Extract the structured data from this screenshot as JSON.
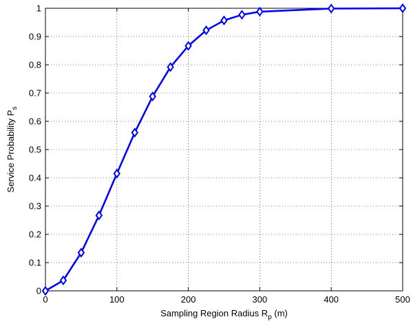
{
  "chart_data": {
    "type": "line",
    "title": "",
    "xlabel": {
      "main": "Sampling Region Radius R",
      "sub": "p",
      "suffix": " (m)"
    },
    "ylabel": {
      "main": "Service Probability P",
      "sub": "s"
    },
    "xlim": [
      0,
      500
    ],
    "ylim": [
      0,
      1
    ],
    "xticks": [
      0,
      100,
      200,
      300,
      400,
      500
    ],
    "yticks": [
      0,
      0.1,
      0.2,
      0.3,
      0.4,
      0.5,
      0.6,
      0.7,
      0.8,
      0.9,
      1
    ],
    "grid": true,
    "marker": "diamond",
    "series": [
      {
        "color": "#0000ff",
        "x": [
          0,
          25,
          50,
          75,
          100,
          125,
          150,
          175,
          200,
          225,
          250,
          275,
          300,
          400,
          500
        ],
        "y": [
          0.0,
          0.037,
          0.135,
          0.267,
          0.415,
          0.56,
          0.688,
          0.792,
          0.867,
          0.922,
          0.957,
          0.977,
          0.988,
          0.999,
          1.0
        ]
      }
    ]
  }
}
